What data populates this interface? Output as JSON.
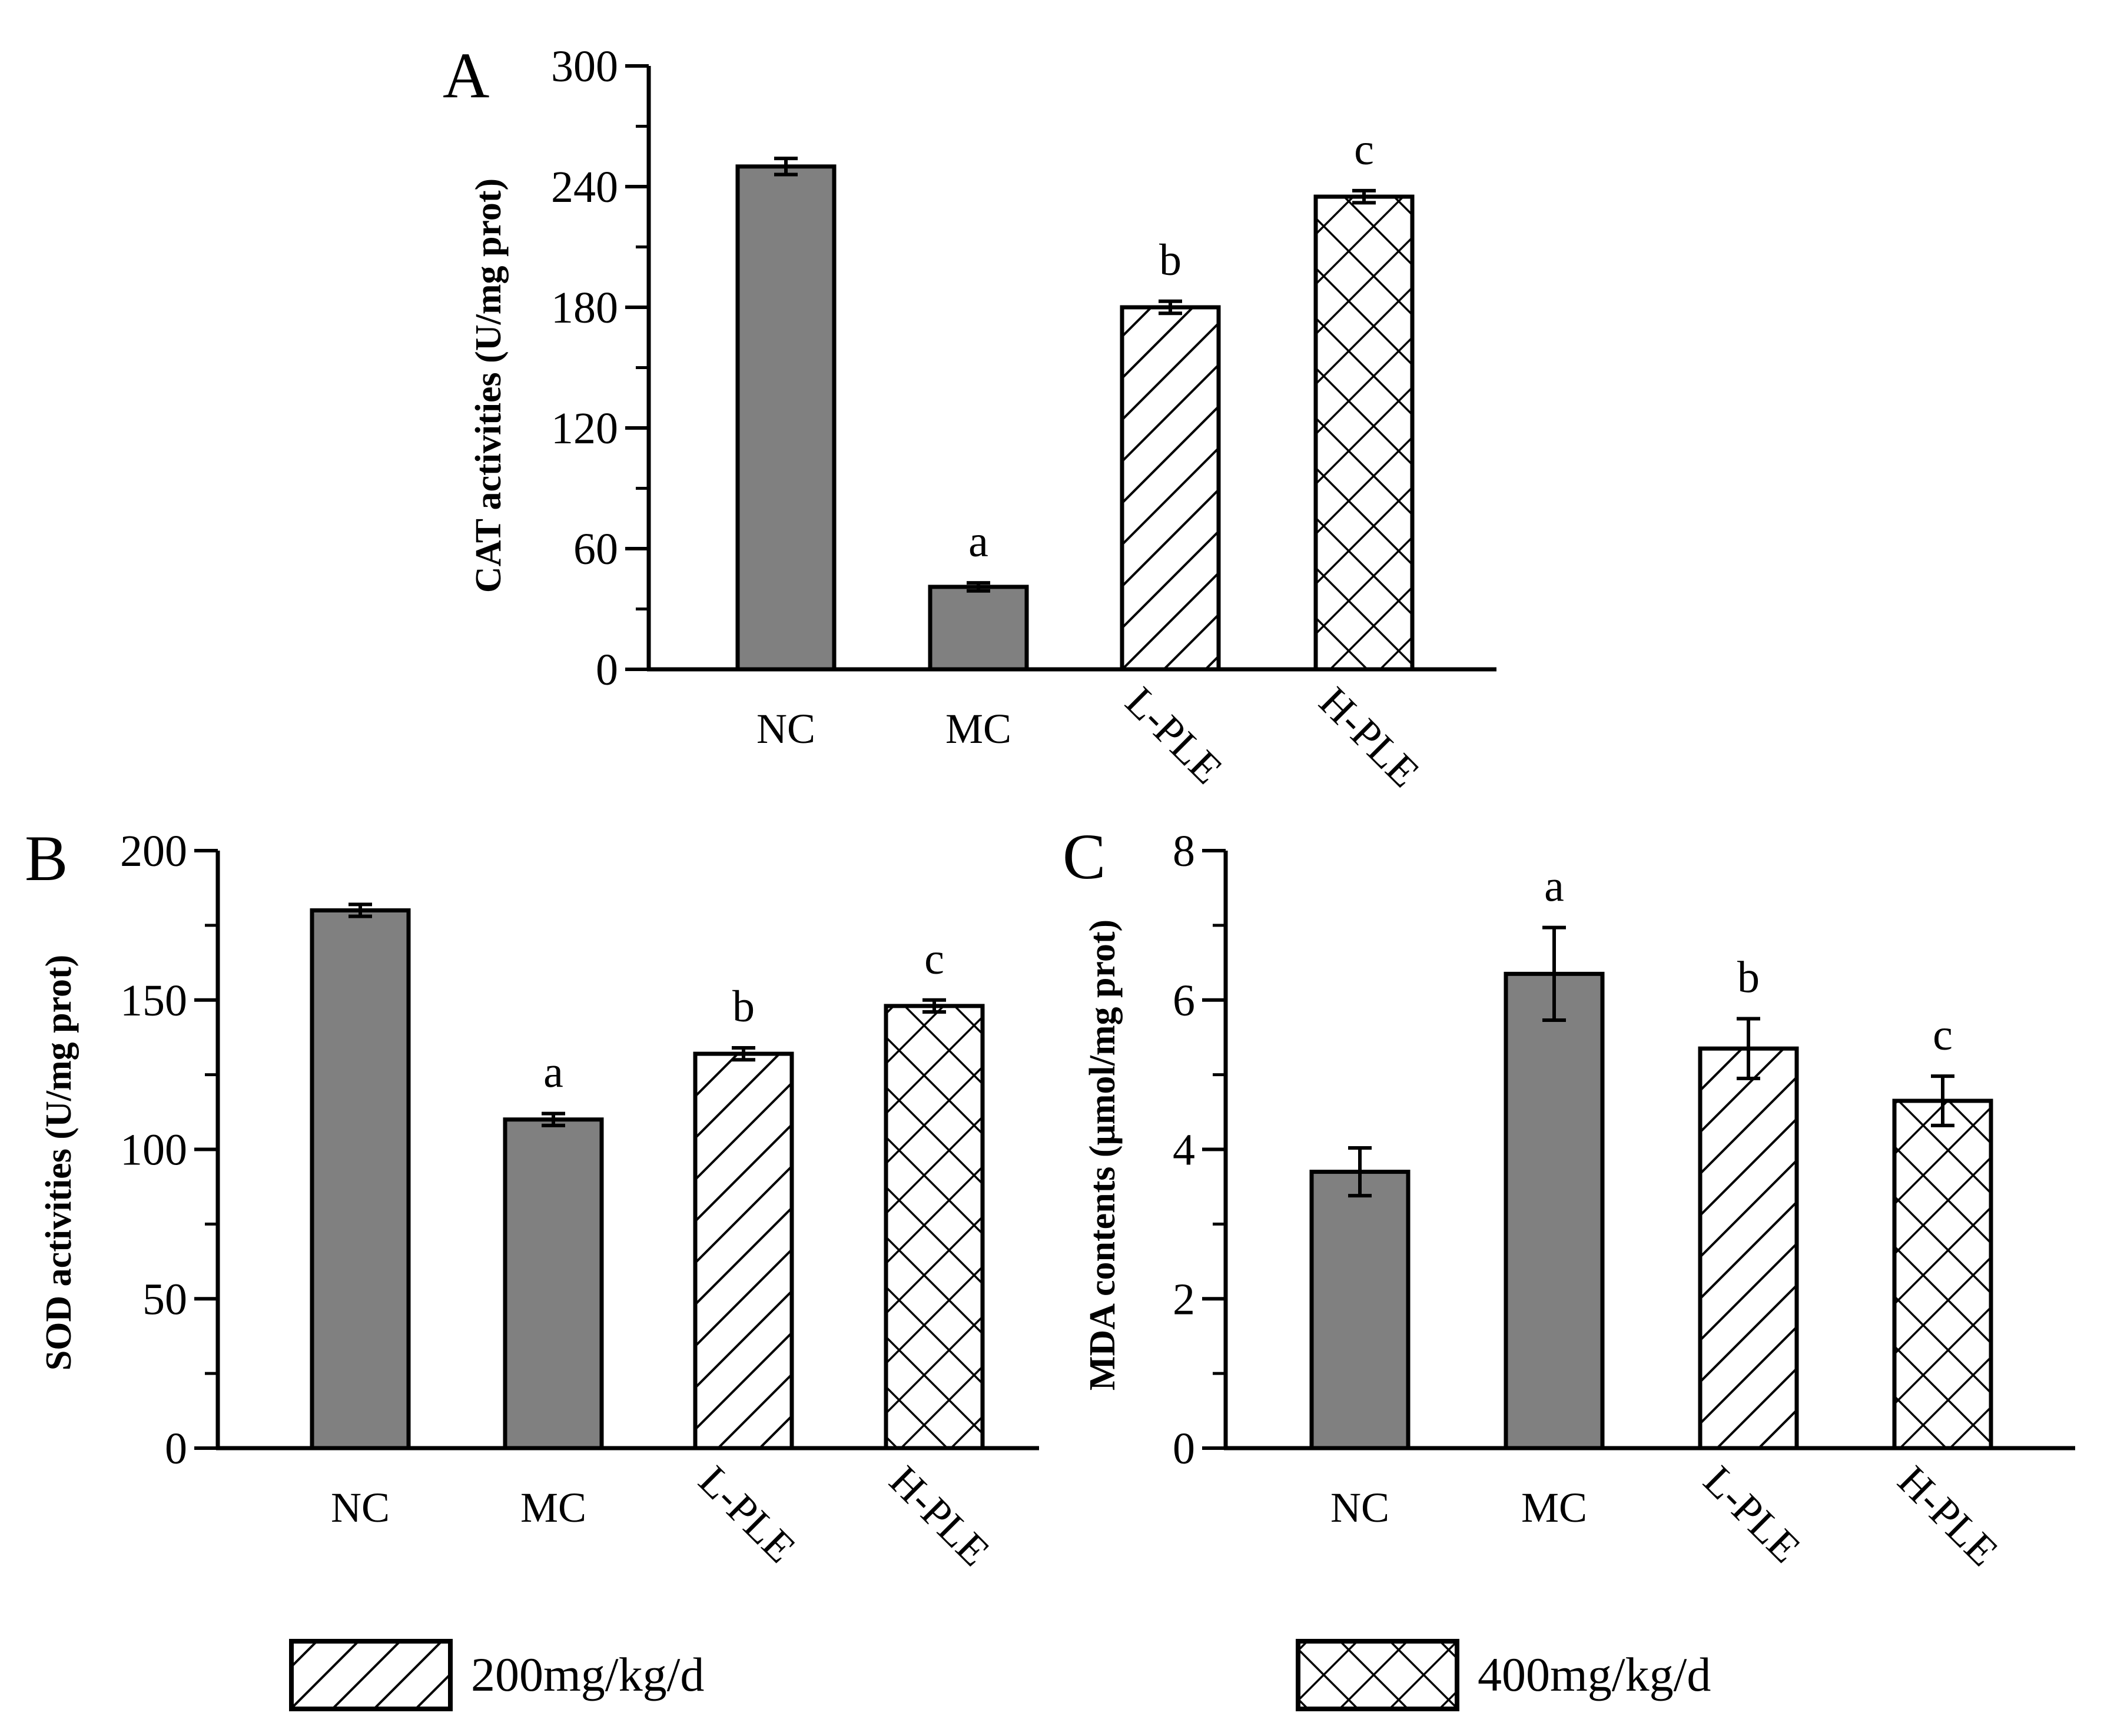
{
  "colors": {
    "solid_bar": "#808080",
    "axis": "#000000",
    "pattern_fill": "#ffffff"
  },
  "chart_data": [
    {
      "panel": "A",
      "type": "bar",
      "ylabel": "CAT activities (U/mg prot)",
      "ylim": [
        0,
        300
      ],
      "yticks": [
        "0",
        "60",
        "120",
        "180",
        "240",
        "300"
      ],
      "categories": [
        "NC",
        "MC",
        "L-PLE",
        "H-PLE"
      ],
      "values": [
        250,
        41,
        180,
        235
      ],
      "errors": [
        4,
        2,
        3,
        3
      ],
      "fills": [
        "solid",
        "solid",
        "hatch",
        "cross"
      ],
      "annotations": [
        "",
        "a",
        "b",
        "c"
      ]
    },
    {
      "panel": "B",
      "type": "bar",
      "ylabel": "SOD activities (U/mg prot)",
      "ylim": [
        0,
        200
      ],
      "yticks": [
        "0",
        "50",
        "100",
        "150",
        "200"
      ],
      "categories": [
        "NC",
        "MC",
        "L-PLE",
        "H-PLE"
      ],
      "values": [
        180,
        110,
        132,
        148
      ],
      "errors": [
        2,
        2,
        2,
        2
      ],
      "fills": [
        "solid",
        "solid",
        "hatch",
        "cross"
      ],
      "annotations": [
        "",
        "a",
        "b",
        "c"
      ]
    },
    {
      "panel": "C",
      "type": "bar",
      "ylabel": "MDA contents (μmol/mg prot)",
      "ylim": [
        0,
        8
      ],
      "yticks": [
        "0",
        "2",
        "4",
        "6",
        "8"
      ],
      "categories": [
        "NC",
        "MC",
        "L-PLE",
        "H-PLE"
      ],
      "values": [
        3.7,
        6.35,
        5.35,
        4.65
      ],
      "errors": [
        0.32,
        0.62,
        0.4,
        0.33
      ],
      "fills": [
        "solid",
        "solid",
        "hatch",
        "cross"
      ],
      "annotations": [
        "",
        "a",
        "b",
        "c"
      ]
    }
  ],
  "legend": [
    {
      "pattern": "hatch",
      "label": "200mg/kg/d"
    },
    {
      "pattern": "cross",
      "label": "400mg/kg/d"
    }
  ]
}
